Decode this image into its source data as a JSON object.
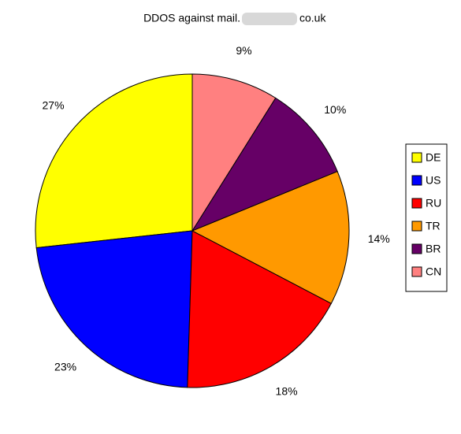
{
  "chart_data": {
    "type": "pie",
    "title_start": "DDOS against mail.",
    "title_end": "co.uk",
    "categories": [
      "DE",
      "US",
      "RU",
      "TR",
      "BR",
      "CN"
    ],
    "values": [
      27,
      23,
      18,
      14,
      10,
      9
    ],
    "value_labels": [
      "27%",
      "23%",
      "18%",
      "14%",
      "10%",
      "9%"
    ],
    "colors": [
      "#ffff00",
      "#0000ff",
      "#ff0000",
      "#ff9900",
      "#660066",
      "#ff8080"
    ],
    "legend": "right"
  }
}
